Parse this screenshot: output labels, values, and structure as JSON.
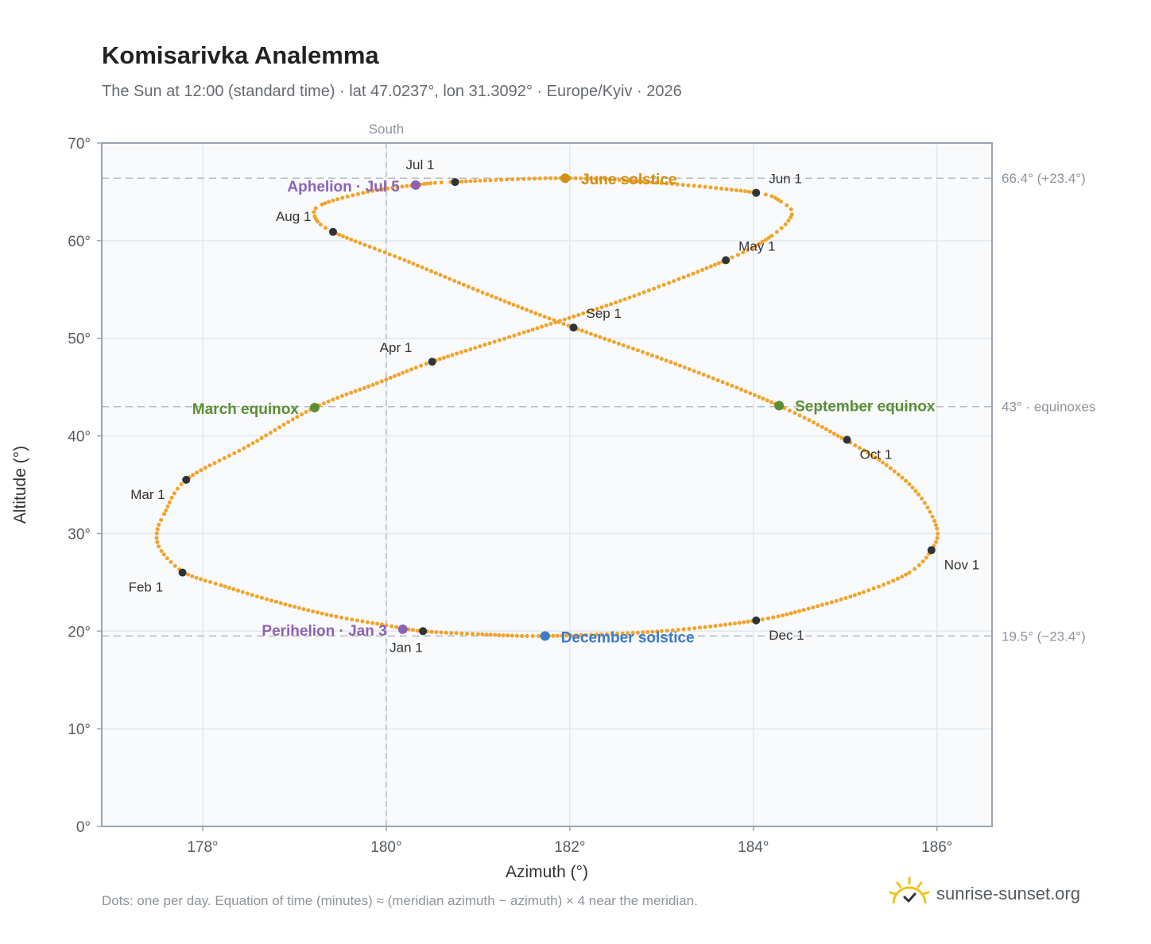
{
  "header": {
    "title": "Komisarivka Analemma",
    "subtitle": "The Sun at 12:00 (standard time) · lat 47.0237°, lon 31.3092° · Europe/Kyiv · 2026"
  },
  "footer": {
    "note": "Dots: one per day. Equation of time (minutes) ≈ (meridian azimuth − azimuth) × 4 near the meridian.",
    "brand": "sunrise-sunset.org"
  },
  "colors": {
    "path": "#f2a32a",
    "month_marker": "#2f3338",
    "june_solstice": "#d18e0f",
    "december_solstice": "#3a7bc8",
    "equinox": "#5a8f35",
    "apsis": "#8e62b3",
    "reference_line": "#b5bcc4",
    "plot_background": "#f8fafc"
  },
  "chart_data": {
    "type": "scatter",
    "title": "Komisarivka Analemma",
    "xlabel": "Azimuth (°)",
    "ylabel": "Altitude (°)",
    "xlim": [
      176.9,
      186.6
    ],
    "ylim": [
      0,
      70
    ],
    "x_ticks": [
      {
        "value": 178,
        "label": "178°"
      },
      {
        "value": 180,
        "label": "180°"
      },
      {
        "value": 182,
        "label": "182°"
      },
      {
        "value": 184,
        "label": "184°"
      },
      {
        "value": 186,
        "label": "186°"
      }
    ],
    "y_ticks": [
      {
        "value": 0,
        "label": "0°"
      },
      {
        "value": 10,
        "label": "10°"
      },
      {
        "value": 20,
        "label": "20°"
      },
      {
        "value": 30,
        "label": "30°"
      },
      {
        "value": 40,
        "label": "40°"
      },
      {
        "value": 50,
        "label": "50°"
      },
      {
        "value": 60,
        "label": "60°"
      },
      {
        "value": 70,
        "label": "70°"
      }
    ],
    "grid": true,
    "meridian": {
      "azimuth": 180,
      "label": "South"
    },
    "reference_lines": [
      {
        "altitude": 66.4,
        "label": "66.4° (+23.4°)"
      },
      {
        "altitude": 43.0,
        "label": "43° · equinoxes"
      },
      {
        "altitude": 19.5,
        "label": "19.5° (−23.4°)"
      }
    ],
    "daily_path": [
      [
        180.4,
        20.0
      ],
      [
        180.0,
        20.6
      ],
      [
        179.4,
        21.6
      ],
      [
        178.8,
        23.0
      ],
      [
        178.2,
        24.7
      ],
      [
        177.8,
        26.0
      ],
      [
        177.55,
        28.2
      ],
      [
        177.5,
        30.0
      ],
      [
        177.58,
        32.0
      ],
      [
        177.82,
        35.5
      ],
      [
        178.5,
        39.0
      ],
      [
        179.22,
        42.9
      ],
      [
        179.9,
        45.4
      ],
      [
        180.5,
        47.6
      ],
      [
        181.5,
        50.6
      ],
      [
        182.6,
        54.0
      ],
      [
        183.7,
        58.0
      ],
      [
        184.2,
        60.5
      ],
      [
        184.42,
        62.7
      ],
      [
        184.3,
        64.0
      ],
      [
        184.03,
        64.9
      ],
      [
        183.0,
        65.9
      ],
      [
        181.95,
        66.4
      ],
      [
        180.7,
        66.0
      ],
      [
        180.32,
        65.7
      ],
      [
        179.8,
        65.0
      ],
      [
        179.3,
        63.7
      ],
      [
        179.22,
        62.5
      ],
      [
        179.42,
        60.9
      ],
      [
        180.2,
        58.0
      ],
      [
        181.1,
        54.5
      ],
      [
        182.04,
        51.1
      ],
      [
        183.2,
        47.2
      ],
      [
        184.28,
        43.1
      ],
      [
        185.0,
        39.6
      ],
      [
        185.45,
        37.0
      ],
      [
        185.8,
        34.0
      ],
      [
        186.0,
        30.5
      ],
      [
        185.94,
        28.3
      ],
      [
        185.7,
        26.0
      ],
      [
        185.2,
        24.0
      ],
      [
        184.6,
        22.3
      ],
      [
        184.03,
        21.1
      ],
      [
        183.0,
        20.0
      ],
      [
        181.73,
        19.5
      ],
      [
        181.0,
        19.7
      ],
      [
        180.4,
        20.0
      ]
    ],
    "month_markers": [
      {
        "label": "Jan 1",
        "x": 180.4,
        "y": 20.0
      },
      {
        "label": "Feb 1",
        "x": 177.78,
        "y": 26.0
      },
      {
        "label": "Mar 1",
        "x": 177.82,
        "y": 35.5
      },
      {
        "label": "Apr 1",
        "x": 180.5,
        "y": 47.6
      },
      {
        "label": "May 1",
        "x": 183.7,
        "y": 58.0
      },
      {
        "label": "Jun 1",
        "x": 184.03,
        "y": 64.9
      },
      {
        "label": "Jul 1",
        "x": 180.75,
        "y": 66.0
      },
      {
        "label": "Aug 1",
        "x": 179.42,
        "y": 60.9
      },
      {
        "label": "Sep 1",
        "x": 182.04,
        "y": 51.1
      },
      {
        "label": "Oct 1",
        "x": 185.02,
        "y": 39.6
      },
      {
        "label": "Nov 1",
        "x": 185.94,
        "y": 28.3
      },
      {
        "label": "Dec 1",
        "x": 184.03,
        "y": 21.1
      }
    ],
    "events": [
      {
        "label": "June solstice",
        "x": 181.95,
        "y": 66.4,
        "kind": "june_solstice"
      },
      {
        "label": "December solstice",
        "x": 181.73,
        "y": 19.5,
        "kind": "december_solstice"
      },
      {
        "label": "March equinox",
        "x": 179.22,
        "y": 42.9,
        "kind": "equinox"
      },
      {
        "label": "September equinox",
        "x": 184.28,
        "y": 43.1,
        "kind": "equinox"
      },
      {
        "label": "Aphelion · Jul 5",
        "x": 180.32,
        "y": 65.7,
        "kind": "apsis"
      },
      {
        "label": "Perihelion · Jan 3",
        "x": 180.18,
        "y": 20.2,
        "kind": "apsis"
      }
    ]
  }
}
